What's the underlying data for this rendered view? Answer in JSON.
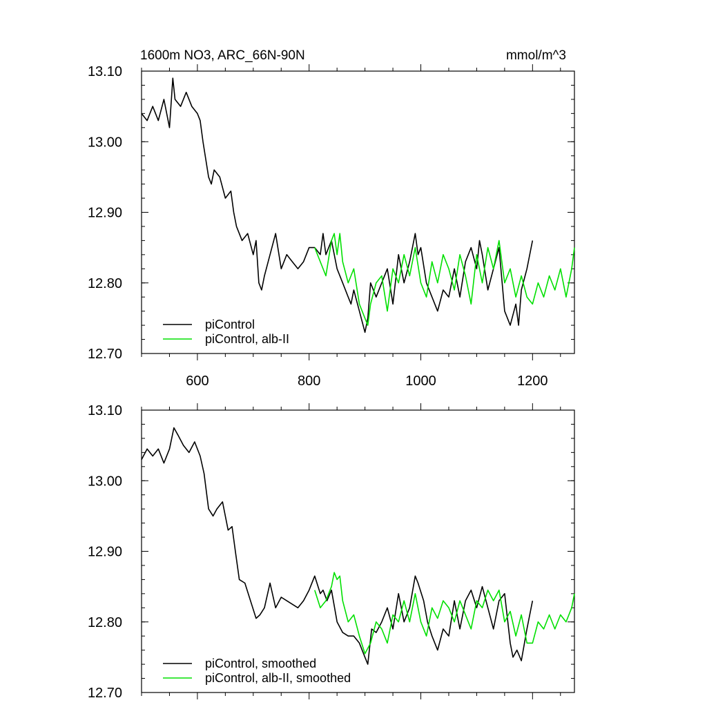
{
  "chart_data": [
    {
      "type": "line",
      "title": "1600m NO3, ARC_66N-90N",
      "units": "mmol/m^3",
      "xlim": [
        500,
        1275
      ],
      "ylim": [
        12.7,
        13.1
      ],
      "xticks": [
        600,
        800,
        1000,
        1200
      ],
      "xtick_labels": [
        "600",
        "800",
        "1000",
        "1200"
      ],
      "yticks": [
        12.7,
        12.8,
        12.9,
        13.0,
        13.1
      ],
      "ytick_labels": [
        "12.70",
        "12.80",
        "12.90",
        "13.00",
        "13.10"
      ],
      "grid": false,
      "legend_position": "bottom-left",
      "series": [
        {
          "name": "piControl",
          "color": "#000000",
          "x": [
            500,
            510,
            520,
            530,
            540,
            550,
            556,
            560,
            570,
            580,
            590,
            600,
            605,
            610,
            620,
            625,
            630,
            640,
            650,
            660,
            665,
            670,
            680,
            690,
            700,
            705,
            710,
            715,
            720,
            730,
            740,
            750,
            760,
            770,
            780,
            790,
            800,
            810,
            820,
            825,
            830,
            840,
            850,
            860,
            870,
            875,
            880,
            890,
            900,
            905,
            910,
            920,
            930,
            940,
            950,
            960,
            970,
            980,
            990,
            995,
            1000,
            1010,
            1020,
            1030,
            1040,
            1050,
            1060,
            1070,
            1080,
            1090,
            1100,
            1105,
            1110,
            1120,
            1130,
            1140,
            1150,
            1160,
            1170,
            1175,
            1180,
            1190,
            1200
          ],
          "y": [
            13.04,
            13.03,
            13.05,
            13.03,
            13.06,
            13.02,
            13.09,
            13.06,
            13.05,
            13.07,
            13.05,
            13.04,
            13.03,
            13.0,
            12.95,
            12.94,
            12.96,
            12.95,
            12.92,
            12.93,
            12.9,
            12.88,
            12.86,
            12.87,
            12.84,
            12.86,
            12.8,
            12.79,
            12.81,
            12.84,
            12.87,
            12.82,
            12.84,
            12.83,
            12.82,
            12.83,
            12.85,
            12.85,
            12.84,
            12.87,
            12.84,
            12.86,
            12.82,
            12.8,
            12.78,
            12.77,
            12.79,
            12.76,
            12.73,
            12.75,
            12.8,
            12.78,
            12.8,
            12.82,
            12.77,
            12.84,
            12.8,
            12.83,
            12.87,
            12.84,
            12.85,
            12.8,
            12.78,
            12.76,
            12.79,
            12.78,
            12.82,
            12.78,
            12.83,
            12.85,
            12.82,
            12.86,
            12.84,
            12.79,
            12.82,
            12.85,
            12.76,
            12.74,
            12.77,
            12.74,
            12.79,
            12.82,
            12.86
          ]
        },
        {
          "name": "piControl, alb-II",
          "color": "#00e000",
          "x": [
            810,
            820,
            830,
            840,
            845,
            850,
            855,
            860,
            870,
            880,
            890,
            900,
            905,
            910,
            920,
            930,
            940,
            950,
            960,
            970,
            980,
            990,
            1000,
            1010,
            1020,
            1030,
            1040,
            1050,
            1060,
            1070,
            1080,
            1090,
            1100,
            1110,
            1120,
            1130,
            1140,
            1150,
            1160,
            1170,
            1180,
            1190,
            1200,
            1210,
            1220,
            1230,
            1240,
            1250,
            1260,
            1270,
            1275
          ],
          "y": [
            12.85,
            12.83,
            12.81,
            12.86,
            12.87,
            12.84,
            12.87,
            12.83,
            12.8,
            12.82,
            12.77,
            12.75,
            12.74,
            12.77,
            12.8,
            12.81,
            12.76,
            12.82,
            12.8,
            12.84,
            12.81,
            12.85,
            12.8,
            12.78,
            12.83,
            12.8,
            12.84,
            12.82,
            12.79,
            12.84,
            12.81,
            12.77,
            12.84,
            12.8,
            12.85,
            12.82,
            12.86,
            12.8,
            12.82,
            12.78,
            12.81,
            12.78,
            12.77,
            12.8,
            12.78,
            12.81,
            12.79,
            12.82,
            12.78,
            12.82,
            12.85
          ]
        }
      ]
    },
    {
      "type": "line",
      "xlim": [
        500,
        1275
      ],
      "ylim": [
        12.7,
        13.1
      ],
      "xticks": [
        600,
        800,
        1000,
        1200
      ],
      "yticks": [
        12.7,
        12.8,
        12.9,
        13.0,
        13.1
      ],
      "ytick_labels": [
        "12.70",
        "12.80",
        "12.90",
        "13.00",
        "13.10"
      ],
      "grid": false,
      "legend_position": "bottom-left",
      "series": [
        {
          "name": "piControl, smoothed",
          "color": "#000000",
          "x": [
            500,
            510,
            520,
            530,
            540,
            550,
            558,
            565,
            575,
            585,
            595,
            605,
            612,
            620,
            628,
            635,
            645,
            655,
            662,
            668,
            675,
            685,
            695,
            705,
            712,
            720,
            730,
            740,
            750,
            760,
            770,
            780,
            790,
            800,
            810,
            820,
            825,
            832,
            840,
            850,
            860,
            870,
            880,
            890,
            900,
            905,
            912,
            920,
            930,
            940,
            950,
            960,
            970,
            980,
            990,
            995,
            1005,
            1012,
            1020,
            1030,
            1040,
            1050,
            1060,
            1070,
            1080,
            1090,
            1100,
            1110,
            1120,
            1130,
            1140,
            1150,
            1160,
            1165,
            1172,
            1180,
            1190,
            1200
          ],
          "y": [
            13.03,
            13.045,
            13.035,
            13.045,
            13.025,
            13.045,
            13.075,
            13.065,
            13.05,
            13.04,
            13.055,
            13.035,
            13.01,
            12.96,
            12.95,
            12.96,
            12.97,
            12.93,
            12.935,
            12.9,
            12.86,
            12.855,
            12.83,
            12.805,
            12.81,
            12.82,
            12.855,
            12.82,
            12.835,
            12.83,
            12.825,
            12.82,
            12.83,
            12.845,
            12.865,
            12.84,
            12.845,
            12.83,
            12.845,
            12.8,
            12.785,
            12.78,
            12.78,
            12.77,
            12.75,
            12.74,
            12.79,
            12.785,
            12.8,
            12.82,
            12.79,
            12.84,
            12.8,
            12.82,
            12.865,
            12.855,
            12.83,
            12.8,
            12.78,
            12.76,
            12.79,
            12.78,
            12.83,
            12.79,
            12.83,
            12.845,
            12.82,
            12.85,
            12.82,
            12.79,
            12.83,
            12.84,
            12.77,
            12.75,
            12.76,
            12.745,
            12.79,
            12.83
          ]
        },
        {
          "name": "piControl, alb-II, smoothed",
          "color": "#00e000",
          "x": [
            810,
            820,
            830,
            840,
            845,
            850,
            855,
            860,
            870,
            880,
            890,
            900,
            910,
            920,
            930,
            940,
            950,
            960,
            970,
            980,
            990,
            1000,
            1010,
            1020,
            1030,
            1040,
            1050,
            1060,
            1070,
            1080,
            1090,
            1100,
            1110,
            1120,
            1130,
            1140,
            1150,
            1160,
            1170,
            1180,
            1190,
            1200,
            1210,
            1220,
            1230,
            1240,
            1250,
            1260,
            1270,
            1275
          ],
          "y": [
            12.845,
            12.82,
            12.83,
            12.85,
            12.87,
            12.86,
            12.865,
            12.83,
            12.8,
            12.81,
            12.78,
            12.755,
            12.77,
            12.8,
            12.79,
            12.77,
            12.81,
            12.8,
            12.83,
            12.8,
            12.84,
            12.8,
            12.78,
            12.82,
            12.805,
            12.83,
            12.82,
            12.8,
            12.83,
            12.81,
            12.79,
            12.83,
            12.82,
            12.845,
            12.83,
            12.845,
            12.8,
            12.815,
            12.78,
            12.81,
            12.77,
            12.77,
            12.8,
            12.79,
            12.81,
            12.79,
            12.81,
            12.8,
            12.82,
            12.84
          ]
        }
      ]
    }
  ]
}
